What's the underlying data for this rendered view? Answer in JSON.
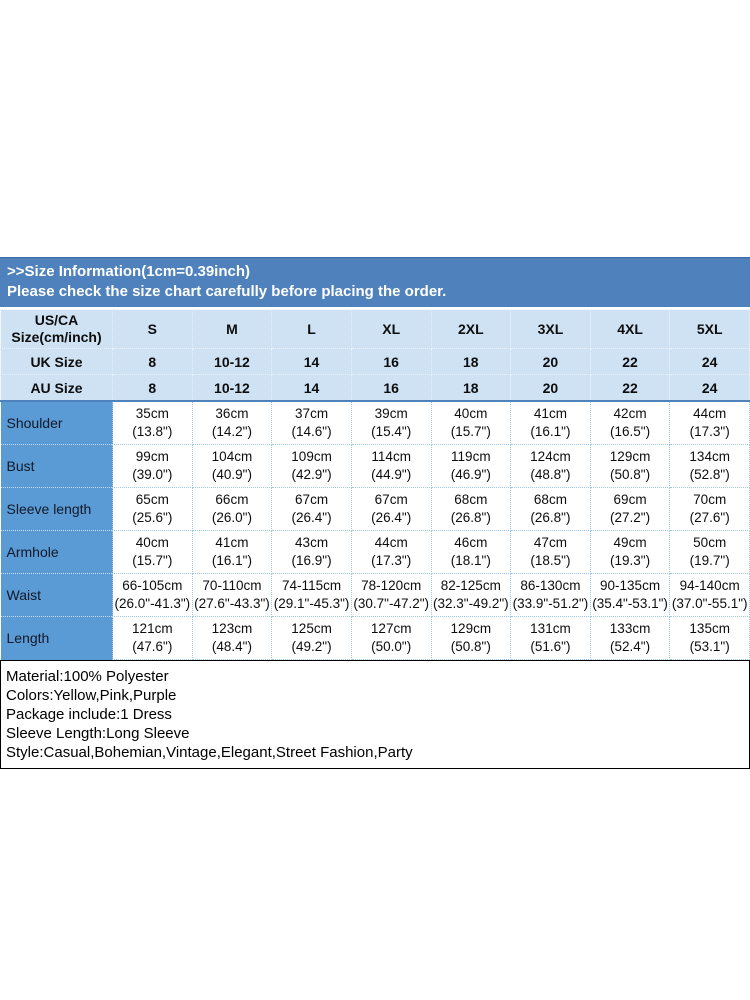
{
  "colors": {
    "banner_bg": "#4F81BD",
    "banner_text": "#FFFFFF",
    "header_row_bg": "#CFE2F3",
    "label_col_bg": "#5B9BD5",
    "divider_blue": "#4F81BD",
    "cell_border": "#9FC5E8",
    "info_border": "#000000"
  },
  "banner": {
    "line1": ">>Size Information(1cm=0.39inch)",
    "line2": "Please check the size chart carefully before placing the order."
  },
  "size_table": {
    "corner_line1": "US/CA",
    "corner_line2": "Size(cm/inch)",
    "size_headers": [
      "S",
      "M",
      "L",
      "XL",
      "2XL",
      "3XL",
      "4XL",
      "5XL"
    ],
    "uk_row": {
      "label": "UK Size",
      "values": [
        "8",
        "10-12",
        "14",
        "16",
        "18",
        "20",
        "22",
        "24"
      ]
    },
    "au_row": {
      "label": "AU Size",
      "values": [
        "8",
        "10-12",
        "14",
        "16",
        "18",
        "20",
        "22",
        "24"
      ]
    },
    "measurement_rows": [
      {
        "label": "Shoulder",
        "cells": [
          {
            "cm": "35cm",
            "inch": "(13.8\")"
          },
          {
            "cm": "36cm",
            "inch": "(14.2\")"
          },
          {
            "cm": "37cm",
            "inch": "(14.6\")"
          },
          {
            "cm": "39cm",
            "inch": "(15.4\")"
          },
          {
            "cm": "40cm",
            "inch": "(15.7\")"
          },
          {
            "cm": "41cm",
            "inch": "(16.1\")"
          },
          {
            "cm": "42cm",
            "inch": "(16.5\")"
          },
          {
            "cm": "44cm",
            "inch": "(17.3\")"
          }
        ]
      },
      {
        "label": "Bust",
        "cells": [
          {
            "cm": "99cm",
            "inch": "(39.0\")"
          },
          {
            "cm": "104cm",
            "inch": "(40.9\")"
          },
          {
            "cm": "109cm",
            "inch": "(42.9\")"
          },
          {
            "cm": "114cm",
            "inch": "(44.9\")"
          },
          {
            "cm": "119cm",
            "inch": "(46.9\")"
          },
          {
            "cm": "124cm",
            "inch": "(48.8\")"
          },
          {
            "cm": "129cm",
            "inch": "(50.8\")"
          },
          {
            "cm": "134cm",
            "inch": "(52.8\")"
          }
        ]
      },
      {
        "label": "Sleeve length",
        "cells": [
          {
            "cm": "65cm",
            "inch": "(25.6\")"
          },
          {
            "cm": "66cm",
            "inch": "(26.0\")"
          },
          {
            "cm": "67cm",
            "inch": "(26.4\")"
          },
          {
            "cm": "67cm",
            "inch": "(26.4\")"
          },
          {
            "cm": "68cm",
            "inch": "(26.8\")"
          },
          {
            "cm": "68cm",
            "inch": "(26.8\")"
          },
          {
            "cm": "69cm",
            "inch": "(27.2\")"
          },
          {
            "cm": "70cm",
            "inch": "(27.6\")"
          }
        ]
      },
      {
        "label": "Armhole",
        "cells": [
          {
            "cm": "40cm",
            "inch": "(15.7\")"
          },
          {
            "cm": "41cm",
            "inch": "(16.1\")"
          },
          {
            "cm": "43cm",
            "inch": "(16.9\")"
          },
          {
            "cm": "44cm",
            "inch": "(17.3\")"
          },
          {
            "cm": "46cm",
            "inch": "(18.1\")"
          },
          {
            "cm": "47cm",
            "inch": "(18.5\")"
          },
          {
            "cm": "49cm",
            "inch": "(19.3\")"
          },
          {
            "cm": "50cm",
            "inch": "(19.7\")"
          }
        ]
      },
      {
        "label": "Waist",
        "cells": [
          {
            "cm": "66-105cm",
            "inch": "(26.0\"-41.3\")"
          },
          {
            "cm": "70-110cm",
            "inch": "(27.6\"-43.3\")"
          },
          {
            "cm": "74-115cm",
            "inch": "(29.1\"-45.3\")"
          },
          {
            "cm": "78-120cm",
            "inch": "(30.7\"-47.2\")"
          },
          {
            "cm": "82-125cm",
            "inch": "(32.3\"-49.2\")"
          },
          {
            "cm": "86-130cm",
            "inch": "(33.9\"-51.2\")"
          },
          {
            "cm": "90-135cm",
            "inch": "(35.4\"-53.1\")"
          },
          {
            "cm": "94-140cm",
            "inch": "(37.0\"-55.1\")"
          }
        ]
      },
      {
        "label": "Length",
        "cells": [
          {
            "cm": "121cm",
            "inch": "(47.6\")"
          },
          {
            "cm": "123cm",
            "inch": "(48.4\")"
          },
          {
            "cm": "125cm",
            "inch": "(49.2\")"
          },
          {
            "cm": "127cm",
            "inch": "(50.0\")"
          },
          {
            "cm": "129cm",
            "inch": "(50.8\")"
          },
          {
            "cm": "131cm",
            "inch": "(51.6\")"
          },
          {
            "cm": "133cm",
            "inch": "(52.4\")"
          },
          {
            "cm": "135cm",
            "inch": "(53.1\")"
          }
        ]
      }
    ]
  },
  "product_info": {
    "lines": [
      "Material:100% Polyester",
      "Colors:Yellow,Pink,Purple",
      "Package include:1 Dress",
      "Sleeve Length:Long Sleeve",
      "Style:Casual,Bohemian,Vintage,Elegant,Street Fashion,Party"
    ]
  }
}
